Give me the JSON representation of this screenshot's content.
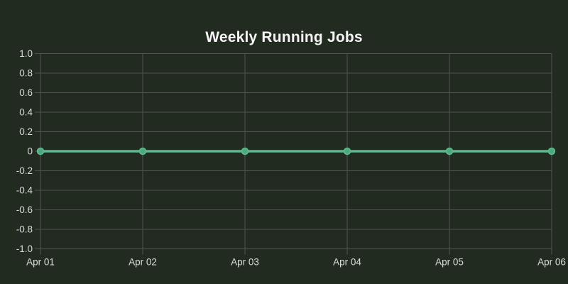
{
  "chart_data": {
    "type": "line",
    "title": "Weekly Running Jobs",
    "x": [
      "Apr 01",
      "Apr 02",
      "Apr 03",
      "Apr 04",
      "Apr 05",
      "Apr 06"
    ],
    "series": [
      {
        "values": [
          0,
          0,
          0,
          0,
          0,
          0
        ]
      }
    ],
    "ylim": [
      -1.0,
      1.0
    ],
    "y_tick_step": 0.2,
    "y_tick_labels_top_to_bottom": [
      "1.0",
      "0.8",
      "0.6",
      "0.4",
      "0.2",
      "0",
      "-0.2",
      "-0.4",
      "-0.6",
      "-0.8",
      "-1.0"
    ],
    "grid": true,
    "legend_position": "none",
    "colors": {
      "background": "#212b20",
      "grid": "#4e564e",
      "tick_label": "#dcdcdc",
      "title": "#f5f5f5",
      "line": "#5cbb90",
      "marker_fill": "#4fa87e"
    }
  }
}
